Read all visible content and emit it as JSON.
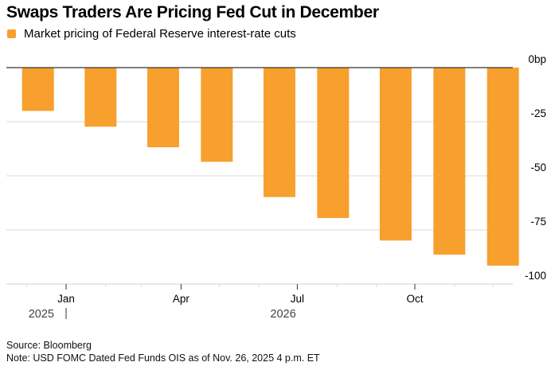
{
  "header": {
    "title": "Swaps Traders Are Pricing Fed Cut in December"
  },
  "legend": {
    "label": "Market pricing of Federal Reserve interest-rate cuts",
    "color": "#F7A02D"
  },
  "footer": {
    "source": "Source: Bloomberg",
    "note": "Note: USD FOMC Dated Fed Funds OIS as of Nov. 26, 2025 4 p.m. ET"
  },
  "chart_data": {
    "type": "bar",
    "title": "Swaps Traders Are Pricing Fed Cut in December",
    "xlabel": "",
    "ylabel": "",
    "series": [
      {
        "name": "Market pricing of Federal Reserve interest-rate cuts",
        "color": "#F7A02D",
        "dates": [
          "2025-12-10",
          "2026-01-28",
          "2026-03-18",
          "2026-04-29",
          "2026-06-17",
          "2026-07-29",
          "2026-09-16",
          "2026-10-28",
          "2026-12-09"
        ],
        "categories": [
          "Dec 2025",
          "Jan 2026",
          "Mar 2026",
          "Apr 2026",
          "Jun 2026",
          "Jul 2026",
          "Sep 2026",
          "Oct 2026",
          "Dec 2026"
        ],
        "values": [
          -20,
          -27.3,
          -36.8,
          -43.5,
          -59.8,
          -69.5,
          -79.9,
          -86.4,
          -91.5
        ]
      }
    ],
    "y_axis": {
      "ylim": [
        -100,
        0
      ],
      "ticks": [
        0,
        -25,
        -50,
        -75,
        -100
      ],
      "tick_labels": [
        "0bp",
        "-25",
        "-50",
        "-75",
        "-100"
      ],
      "position": "right"
    },
    "x_axis": {
      "range": [
        "2025-11-20",
        "2026-12-31"
      ],
      "month_labels": [
        {
          "label": "Jan",
          "date": "2026-01-01"
        },
        {
          "label": "Apr",
          "date": "2026-04-01"
        },
        {
          "label": "Jul",
          "date": "2026-07-01"
        },
        {
          "label": "Oct",
          "date": "2026-10-01"
        }
      ],
      "year_labels": [
        {
          "label": "2025",
          "date": "2025-12-01"
        },
        {
          "label": "2026",
          "date": "2026-07-01"
        }
      ],
      "minor_ticks": [
        "2025-12-01",
        "2026-02-01",
        "2026-03-01",
        "2026-05-01",
        "2026-06-01",
        "2026-08-01",
        "2026-09-01",
        "2026-11-01",
        "2026-12-01"
      ]
    },
    "grid": true,
    "legend_position": "top-left"
  }
}
